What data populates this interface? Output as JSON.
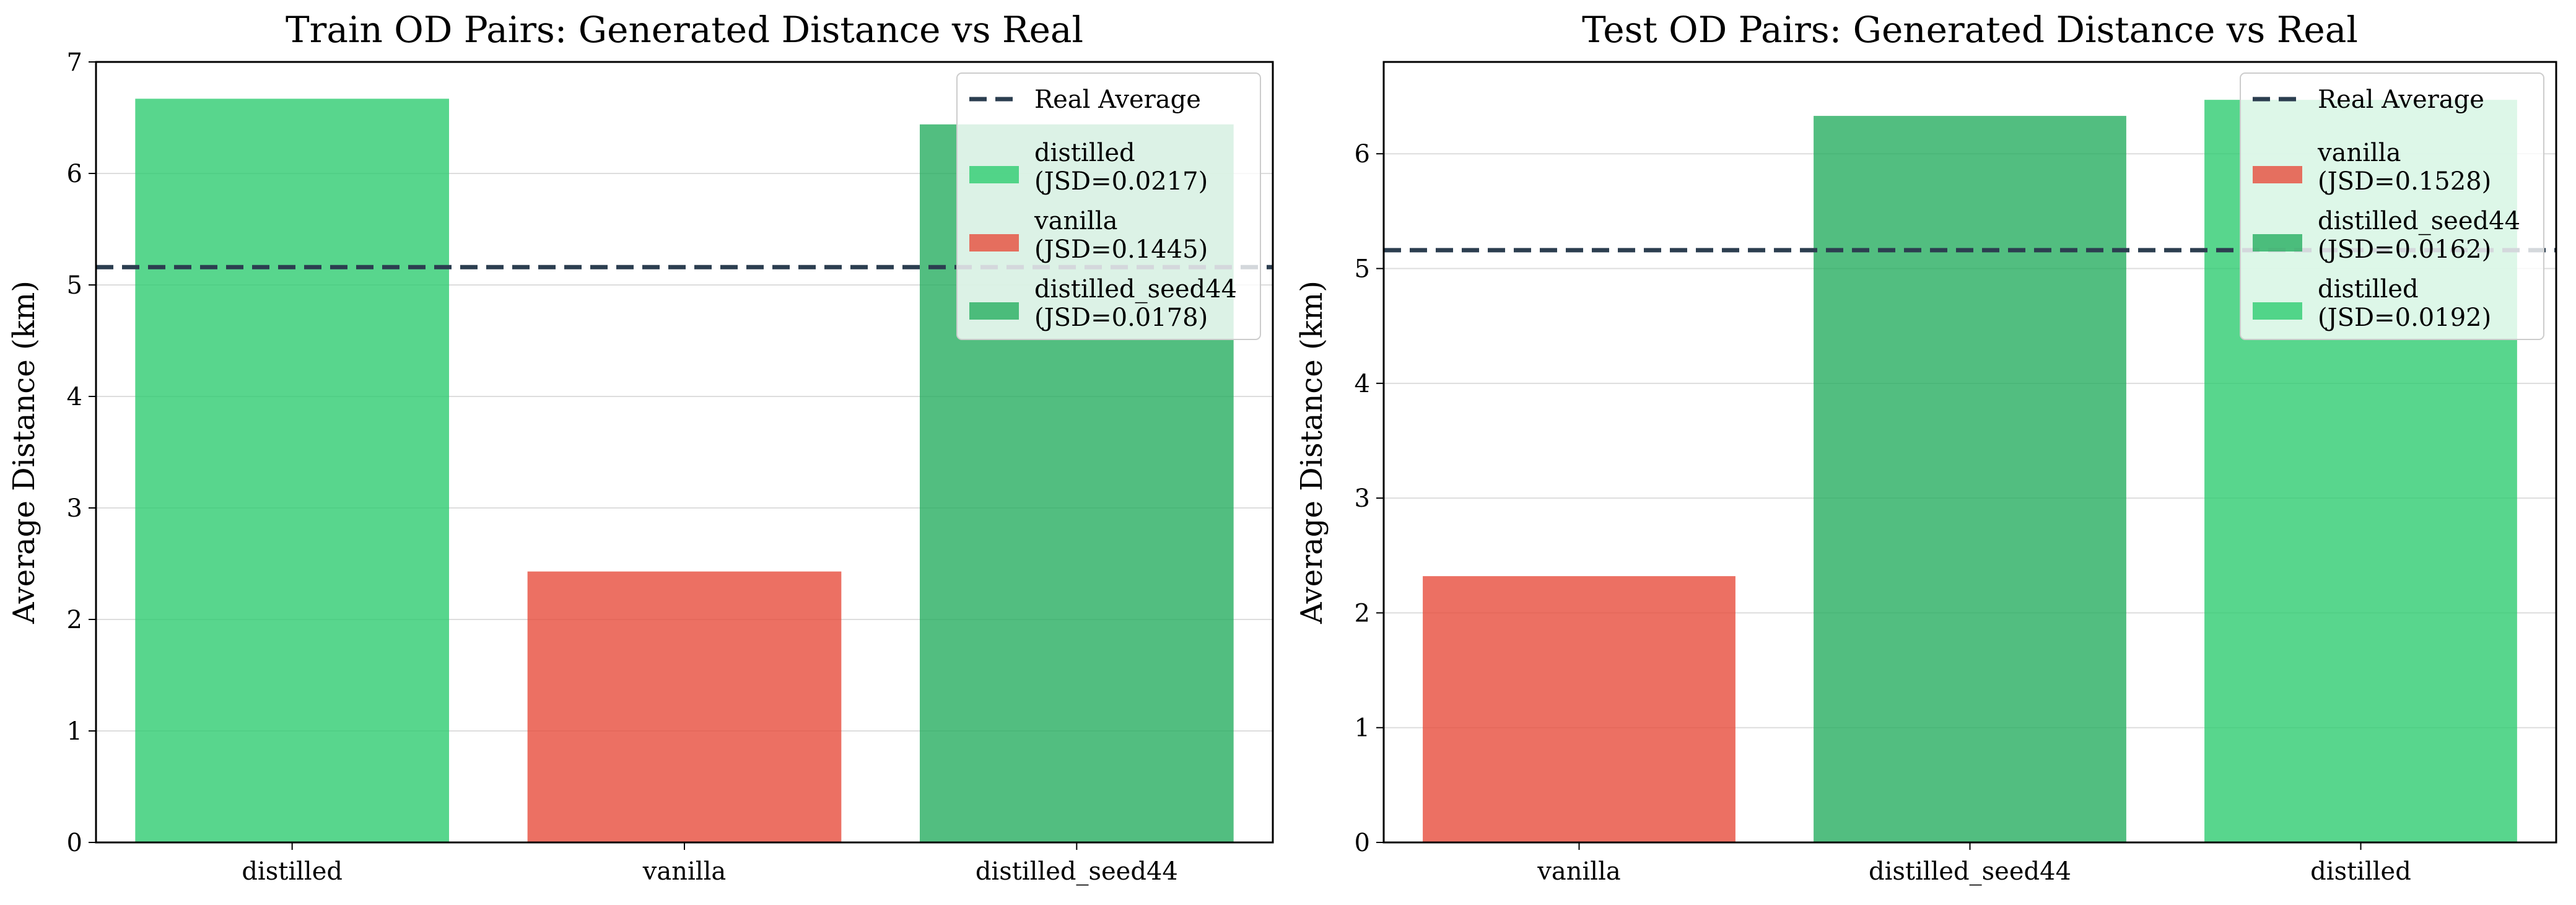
{
  "colors": {
    "distilled": "#2ecc71",
    "vanilla": "#e74c3c",
    "distilled_seed44": "#27ae60",
    "real_average": "#2c3e50",
    "grid": "#dddddd",
    "axes": "#000000"
  },
  "chart_data": [
    {
      "type": "bar",
      "title": "Train OD Pairs: Generated Distance vs Real",
      "xlabel": "",
      "ylabel": "Average Distance (km)",
      "ylim": [
        0,
        7
      ],
      "yticks": [
        0,
        1,
        2,
        3,
        4,
        5,
        6,
        7
      ],
      "grid": "y",
      "legend_position": "top-right",
      "categories": [
        "distilled",
        "vanilla",
        "distilled_seed44"
      ],
      "values": [
        6.67,
        2.43,
        6.44
      ],
      "bar_colors": [
        "distilled",
        "vanilla",
        "distilled_seed44"
      ],
      "reference_line": {
        "label": "Real Average",
        "value": 5.16,
        "style": "dashed"
      },
      "legend": [
        {
          "type": "line",
          "color": "real_average",
          "lines": [
            "Real Average"
          ]
        },
        {
          "type": "patch",
          "color": "distilled",
          "lines": [
            "distilled",
            "(JSD=0.0217)"
          ]
        },
        {
          "type": "patch",
          "color": "vanilla",
          "lines": [
            "vanilla",
            "(JSD=0.1445)"
          ]
        },
        {
          "type": "patch",
          "color": "distilled_seed44",
          "lines": [
            "distilled_seed44",
            "(JSD=0.0178)"
          ]
        }
      ]
    },
    {
      "type": "bar",
      "title": "Test OD Pairs: Generated Distance vs Real",
      "xlabel": "",
      "ylabel": "Average Distance (km)",
      "ylim": [
        0,
        6.8
      ],
      "yticks": [
        0,
        1,
        2,
        3,
        4,
        5,
        6
      ],
      "grid": "y",
      "legend_position": "top-right",
      "categories": [
        "vanilla",
        "distilled_seed44",
        "distilled"
      ],
      "values": [
        2.32,
        6.33,
        6.47
      ],
      "bar_colors": [
        "vanilla",
        "distilled_seed44",
        "distilled"
      ],
      "reference_line": {
        "label": "Real Average",
        "value": 5.16,
        "style": "dashed"
      },
      "legend": [
        {
          "type": "line",
          "color": "real_average",
          "lines": [
            "Real Average"
          ]
        },
        {
          "type": "patch",
          "color": "vanilla",
          "lines": [
            "vanilla",
            "(JSD=0.1528)"
          ]
        },
        {
          "type": "patch",
          "color": "distilled_seed44",
          "lines": [
            "distilled_seed44",
            "(JSD=0.0162)"
          ]
        },
        {
          "type": "patch",
          "color": "distilled",
          "lines": [
            "distilled",
            "(JSD=0.0192)"
          ]
        }
      ]
    }
  ]
}
